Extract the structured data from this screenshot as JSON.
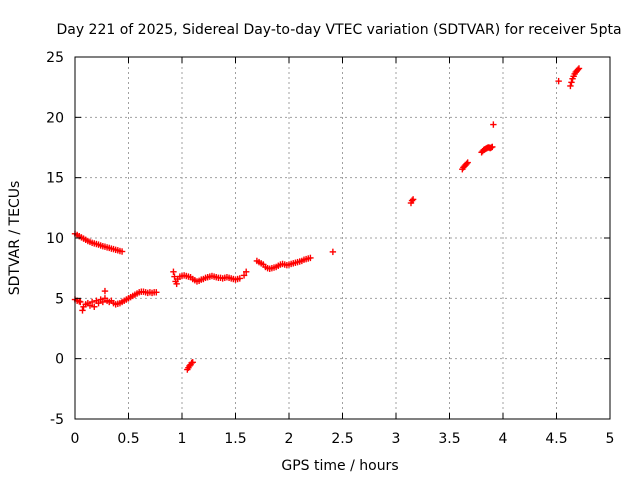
{
  "chart_data": {
    "type": "scatter",
    "title": "Day 221 of 2025, Sidereal Day-to-day VTEC variation (SDTVAR) for receiver 5pta",
    "xlabel": "GPS time / hours",
    "ylabel": "SDTVAR / TECUs",
    "xlim": [
      0,
      5
    ],
    "ylim": [
      -5,
      25
    ],
    "xticks": [
      0,
      0.5,
      1,
      1.5,
      2,
      2.5,
      3,
      3.5,
      4,
      4.5,
      5
    ],
    "xtick_labels": [
      "0",
      "0.5",
      "1",
      "1.5",
      "2",
      "2.5",
      "3",
      "3.5",
      "4",
      "4.5",
      "5"
    ],
    "yticks": [
      -5,
      0,
      5,
      10,
      15,
      20,
      25
    ],
    "ytick_labels": [
      "-5",
      "0",
      "5",
      "10",
      "15",
      "20",
      "25"
    ],
    "grid": true,
    "marker": "plus",
    "color": "#ff0000",
    "series": [
      {
        "name": "SDTVAR",
        "points": [
          [
            0.0,
            10.35
          ],
          [
            0.02,
            10.25
          ],
          [
            0.04,
            10.15
          ],
          [
            0.06,
            10.05
          ],
          [
            0.08,
            9.95
          ],
          [
            0.1,
            9.85
          ],
          [
            0.12,
            9.75
          ],
          [
            0.14,
            9.68
          ],
          [
            0.16,
            9.6
          ],
          [
            0.18,
            9.55
          ],
          [
            0.2,
            9.5
          ],
          [
            0.22,
            9.45
          ],
          [
            0.24,
            9.38
          ],
          [
            0.26,
            9.32
          ],
          [
            0.28,
            9.28
          ],
          [
            0.3,
            9.22
          ],
          [
            0.32,
            9.18
          ],
          [
            0.34,
            9.12
          ],
          [
            0.36,
            9.08
          ],
          [
            0.38,
            9.02
          ],
          [
            0.4,
            8.98
          ],
          [
            0.42,
            8.92
          ],
          [
            0.44,
            8.88
          ],
          [
            0.0,
            4.9
          ],
          [
            0.02,
            4.8
          ],
          [
            0.04,
            4.75
          ],
          [
            0.05,
            4.7
          ],
          [
            0.07,
            4.0
          ],
          [
            0.08,
            4.3
          ],
          [
            0.1,
            4.5
          ],
          [
            0.12,
            4.6
          ],
          [
            0.14,
            4.4
          ],
          [
            0.16,
            4.7
          ],
          [
            0.18,
            4.3
          ],
          [
            0.2,
            4.8
          ],
          [
            0.22,
            4.6
          ],
          [
            0.24,
            4.9
          ],
          [
            0.26,
            4.7
          ],
          [
            0.28,
            5.0
          ],
          [
            0.28,
            5.6
          ],
          [
            0.3,
            4.8
          ],
          [
            0.32,
            4.7
          ],
          [
            0.34,
            4.8
          ],
          [
            0.36,
            4.6
          ],
          [
            0.38,
            4.5
          ],
          [
            0.4,
            4.55
          ],
          [
            0.42,
            4.6
          ],
          [
            0.44,
            4.7
          ],
          [
            0.46,
            4.8
          ],
          [
            0.48,
            4.9
          ],
          [
            0.5,
            5.0
          ],
          [
            0.52,
            5.1
          ],
          [
            0.54,
            5.2
          ],
          [
            0.56,
            5.3
          ],
          [
            0.58,
            5.4
          ],
          [
            0.6,
            5.5
          ],
          [
            0.62,
            5.55
          ],
          [
            0.64,
            5.55
          ],
          [
            0.66,
            5.5
          ],
          [
            0.68,
            5.45
          ],
          [
            0.7,
            5.5
          ],
          [
            0.72,
            5.45
          ],
          [
            0.74,
            5.5
          ],
          [
            0.76,
            5.5
          ],
          [
            0.92,
            7.2
          ],
          [
            0.93,
            6.8
          ],
          [
            0.94,
            6.4
          ],
          [
            0.95,
            6.2
          ],
          [
            0.96,
            6.6
          ],
          [
            0.98,
            6.8
          ],
          [
            1.0,
            6.85
          ],
          [
            1.02,
            6.9
          ],
          [
            1.04,
            6.85
          ],
          [
            1.06,
            6.8
          ],
          [
            1.08,
            6.75
          ],
          [
            1.1,
            6.6
          ],
          [
            1.12,
            6.5
          ],
          [
            1.14,
            6.4
          ],
          [
            1.16,
            6.45
          ],
          [
            1.18,
            6.55
          ],
          [
            1.2,
            6.6
          ],
          [
            1.22,
            6.7
          ],
          [
            1.24,
            6.75
          ],
          [
            1.26,
            6.8
          ],
          [
            1.28,
            6.85
          ],
          [
            1.3,
            6.8
          ],
          [
            1.32,
            6.75
          ],
          [
            1.34,
            6.7
          ],
          [
            1.36,
            6.7
          ],
          [
            1.38,
            6.65
          ],
          [
            1.4,
            6.7
          ],
          [
            1.42,
            6.75
          ],
          [
            1.44,
            6.7
          ],
          [
            1.46,
            6.65
          ],
          [
            1.48,
            6.6
          ],
          [
            1.5,
            6.55
          ],
          [
            1.52,
            6.6
          ],
          [
            1.54,
            6.65
          ],
          [
            1.58,
            6.9
          ],
          [
            1.6,
            7.2
          ],
          [
            1.05,
            -0.9
          ],
          [
            1.06,
            -0.75
          ],
          [
            1.07,
            -0.6
          ],
          [
            1.08,
            -0.5
          ],
          [
            1.09,
            -0.35
          ],
          [
            1.1,
            -0.3
          ],
          [
            1.7,
            8.1
          ],
          [
            1.72,
            8.0
          ],
          [
            1.74,
            7.9
          ],
          [
            1.76,
            7.8
          ],
          [
            1.78,
            7.6
          ],
          [
            1.8,
            7.5
          ],
          [
            1.82,
            7.45
          ],
          [
            1.84,
            7.5
          ],
          [
            1.86,
            7.55
          ],
          [
            1.88,
            7.6
          ],
          [
            1.9,
            7.7
          ],
          [
            1.92,
            7.8
          ],
          [
            1.94,
            7.85
          ],
          [
            1.96,
            7.8
          ],
          [
            1.98,
            7.75
          ],
          [
            2.0,
            7.8
          ],
          [
            2.02,
            7.85
          ],
          [
            2.04,
            7.9
          ],
          [
            2.06,
            7.95
          ],
          [
            2.08,
            8.0
          ],
          [
            2.1,
            8.05
          ],
          [
            2.12,
            8.1
          ],
          [
            2.14,
            8.2
          ],
          [
            2.16,
            8.25
          ],
          [
            2.18,
            8.3
          ],
          [
            2.2,
            8.35
          ],
          [
            2.41,
            8.85
          ],
          [
            3.14,
            12.9
          ],
          [
            3.15,
            13.1
          ],
          [
            3.16,
            13.2
          ],
          [
            3.62,
            15.7
          ],
          [
            3.63,
            15.85
          ],
          [
            3.64,
            15.95
          ],
          [
            3.65,
            16.05
          ],
          [
            3.66,
            16.15
          ],
          [
            3.67,
            16.25
          ],
          [
            3.8,
            17.1
          ],
          [
            3.81,
            17.2
          ],
          [
            3.82,
            17.3
          ],
          [
            3.83,
            17.35
          ],
          [
            3.84,
            17.4
          ],
          [
            3.85,
            17.45
          ],
          [
            3.86,
            17.5
          ],
          [
            3.87,
            17.5
          ],
          [
            3.88,
            17.45
          ],
          [
            3.89,
            17.5
          ],
          [
            3.9,
            17.55
          ],
          [
            3.91,
            19.4
          ],
          [
            4.52,
            23.0
          ],
          [
            4.63,
            22.6
          ],
          [
            4.64,
            22.9
          ],
          [
            4.65,
            23.2
          ],
          [
            4.66,
            23.4
          ],
          [
            4.67,
            23.6
          ],
          [
            4.68,
            23.75
          ],
          [
            4.69,
            23.85
          ],
          [
            4.7,
            23.95
          ],
          [
            4.71,
            24.05
          ]
        ]
      }
    ]
  }
}
